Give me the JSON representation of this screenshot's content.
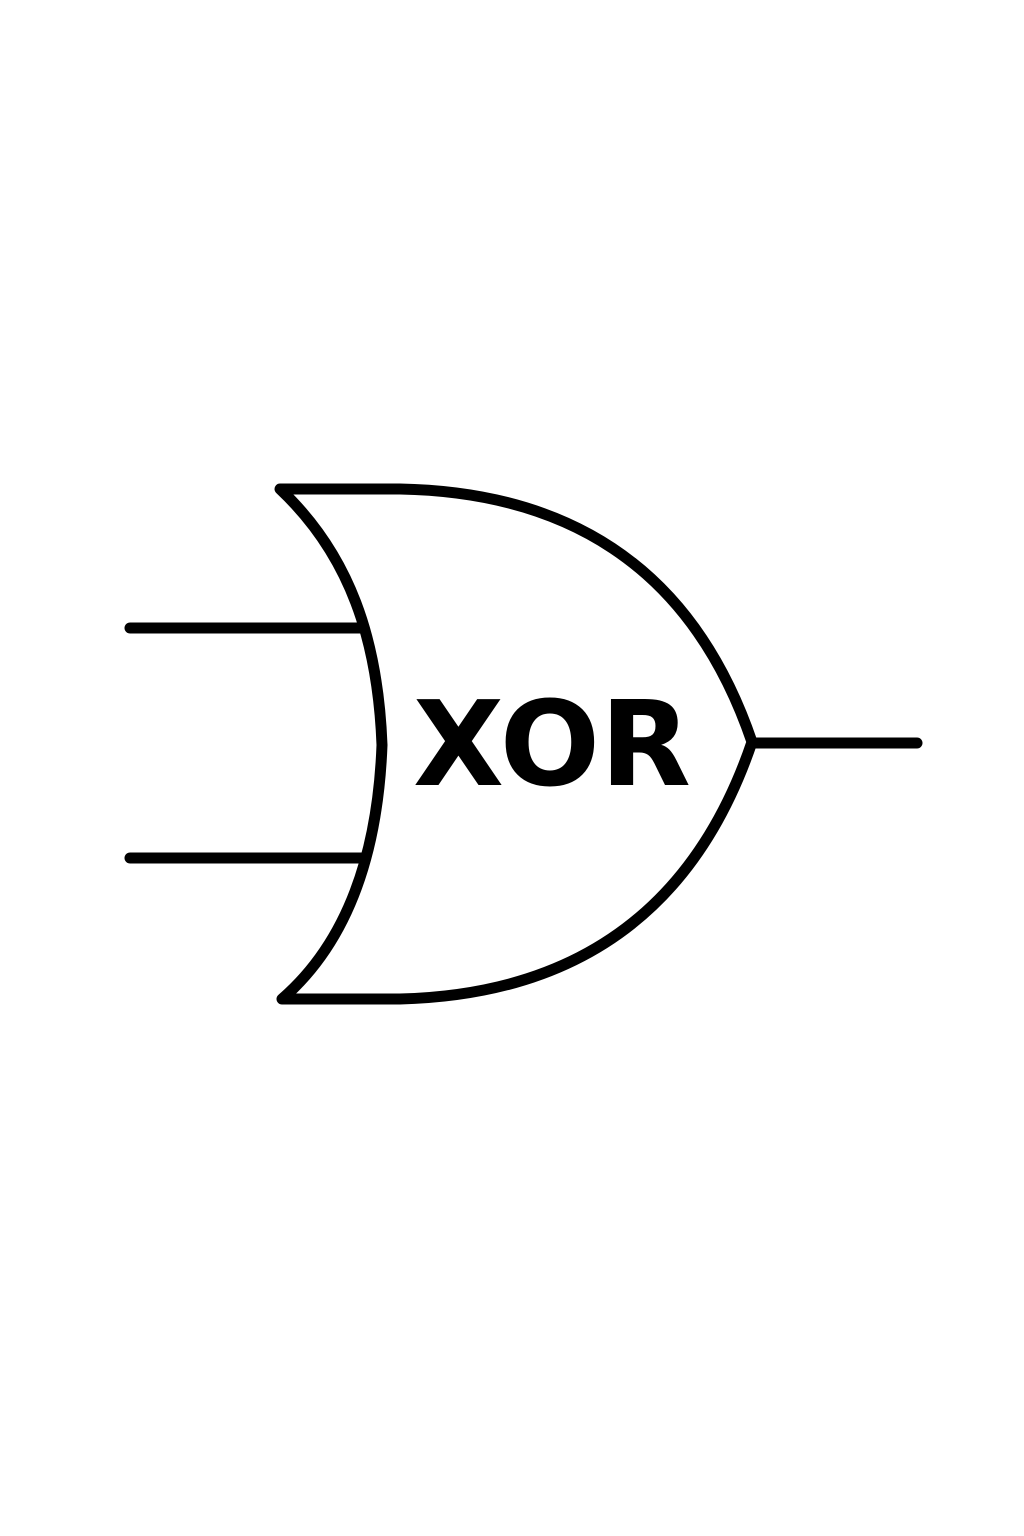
{
  "gate": {
    "label": "XOR"
  },
  "colors": {
    "background": "#ffffff",
    "stroke": "#000000"
  }
}
